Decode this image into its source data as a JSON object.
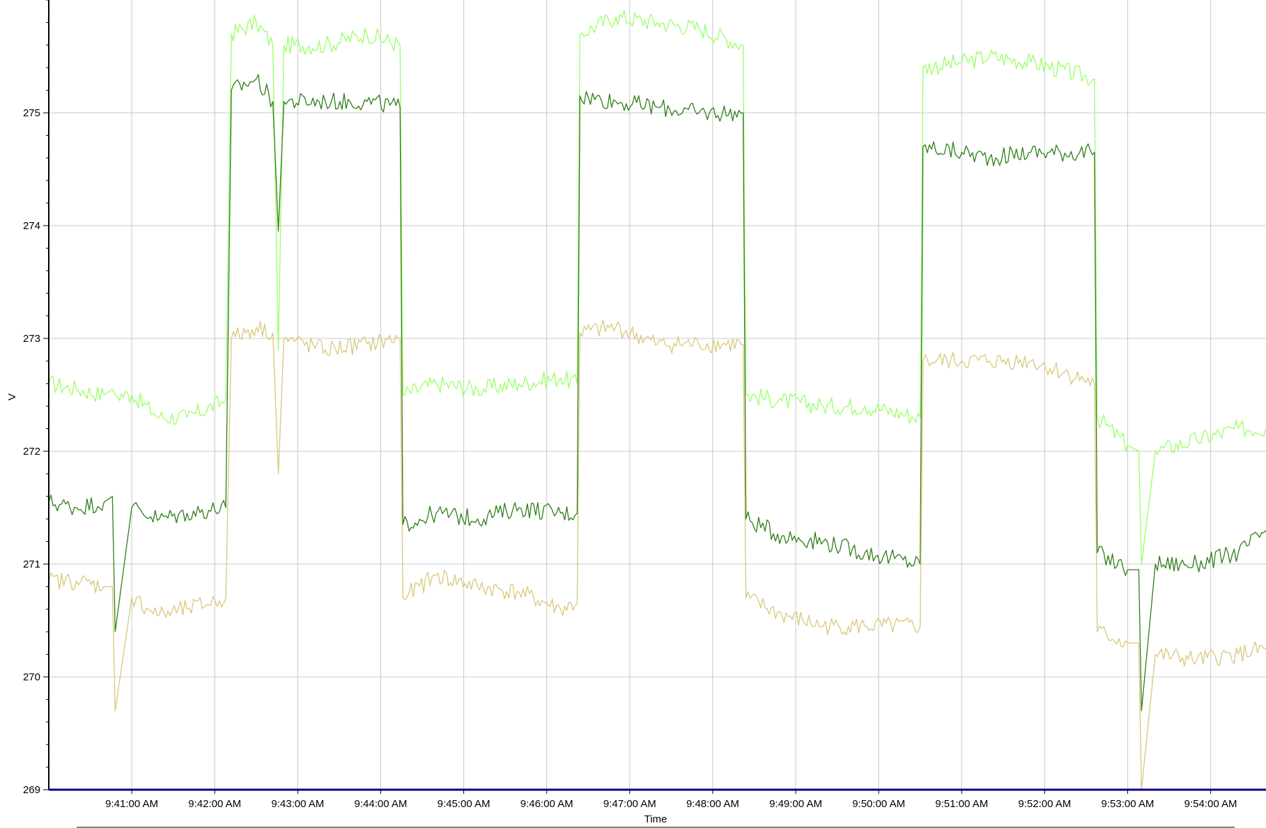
{
  "chart_data": {
    "type": "line",
    "title": "",
    "xlabel": "Time",
    "ylabel": "V",
    "ylim": [
      269,
      276
    ],
    "xlim": [
      "9:40:00 AM",
      "9:54:40 AM"
    ],
    "yticks": [
      269,
      270,
      271,
      272,
      273,
      274,
      275
    ],
    "xticks": [
      "9:41:00 AM",
      "9:42:00 AM",
      "9:43:00 AM",
      "9:44:00 AM",
      "9:45:00 AM",
      "9:46:00 AM",
      "9:47:00 AM",
      "9:48:00 AM",
      "9:49:00 AM",
      "9:50:00 AM",
      "9:51:00 AM",
      "9:52:00 AM",
      "9:53:00 AM",
      "9:54:00 AM"
    ],
    "grid": true,
    "legend": "none",
    "x": [
      "9:40:00 AM",
      "9:40:20 AM",
      "9:40:40 AM",
      "9:40:46 AM",
      "9:40:48 AM",
      "9:41:00 AM",
      "9:41:20 AM",
      "9:41:40 AM",
      "9:42:08 AM",
      "9:42:12 AM",
      "9:42:30 AM",
      "9:42:42 AM",
      "9:42:46 AM",
      "9:42:50 AM",
      "9:43:20 AM",
      "9:43:50 AM",
      "9:44:14 AM",
      "9:44:16 AM",
      "9:44:40 AM",
      "9:45:10 AM",
      "9:45:40 AM",
      "9:46:10 AM",
      "9:46:22 AM",
      "9:46:24 AM",
      "9:46:50 AM",
      "9:47:20 AM",
      "9:47:50 AM",
      "9:48:22 AM",
      "9:48:24 AM",
      "9:48:50 AM",
      "9:49:20 AM",
      "9:49:50 AM",
      "9:50:30 AM",
      "9:50:32 AM",
      "9:51:00 AM",
      "9:51:20 AM",
      "9:51:50 AM",
      "9:52:36 AM",
      "9:52:38 AM",
      "9:53:00 AM",
      "9:53:08 AM",
      "9:53:10 AM",
      "9:53:20 AM",
      "9:53:50 AM",
      "9:54:20 AM",
      "9:54:40 AM"
    ],
    "series": [
      {
        "color": "#99ff66",
        "values": [
          272.6,
          272.55,
          272.5,
          272.55,
          272.5,
          272.5,
          272.3,
          272.3,
          272.45,
          275.7,
          275.8,
          275.6,
          272.9,
          275.6,
          275.6,
          275.7,
          275.6,
          272.5,
          272.6,
          272.55,
          272.6,
          272.65,
          272.6,
          275.7,
          275.85,
          275.8,
          275.75,
          275.6,
          272.5,
          272.45,
          272.4,
          272.4,
          272.3,
          275.4,
          275.45,
          275.5,
          275.45,
          275.3,
          272.3,
          272.05,
          272.0,
          271.0,
          272.0,
          272.1,
          272.2,
          272.2
        ]
      },
      {
        "color": "#2e7d18",
        "values": [
          271.55,
          271.5,
          271.55,
          271.6,
          270.4,
          271.5,
          271.4,
          271.45,
          271.5,
          275.2,
          275.3,
          275.1,
          273.95,
          275.1,
          275.1,
          275.1,
          275.05,
          271.35,
          271.45,
          271.4,
          271.5,
          271.45,
          271.45,
          275.15,
          275.1,
          275.05,
          275.0,
          275.0,
          271.4,
          271.25,
          271.2,
          271.1,
          271.0,
          274.7,
          274.65,
          274.6,
          274.65,
          274.65,
          271.1,
          270.95,
          270.95,
          269.7,
          271.0,
          271.0,
          271.1,
          271.3
        ]
      },
      {
        "color": "#d8c87a",
        "values": [
          270.85,
          270.85,
          270.8,
          270.8,
          269.7,
          270.7,
          270.55,
          270.6,
          270.7,
          273.0,
          273.1,
          273.05,
          271.8,
          273.0,
          272.9,
          272.95,
          273.0,
          270.7,
          270.9,
          270.8,
          270.75,
          270.6,
          270.65,
          273.05,
          273.1,
          272.95,
          272.95,
          272.95,
          270.7,
          270.55,
          270.45,
          270.45,
          270.45,
          272.8,
          272.8,
          272.8,
          272.8,
          272.6,
          270.4,
          270.3,
          270.3,
          269.0,
          270.2,
          270.15,
          270.2,
          270.25
        ]
      }
    ]
  }
}
